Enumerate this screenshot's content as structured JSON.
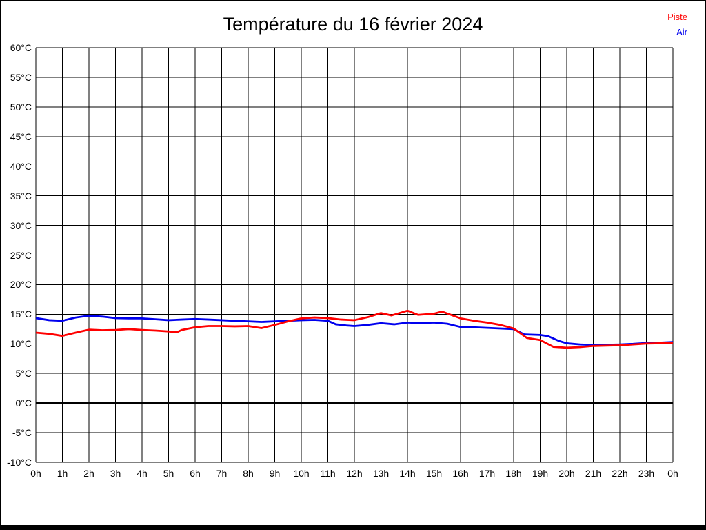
{
  "page": {
    "title": "Température du 16 février 2024"
  },
  "chart_data": {
    "type": "line",
    "title": "Température du 16 février 2024",
    "xlabel": "",
    "ylabel": "",
    "x_unit": "hour of day",
    "y_unit": "°C",
    "xlim": [
      0,
      24
    ],
    "ylim": [
      -10,
      60
    ],
    "grid": true,
    "grid_color": "#000000",
    "background": "#ffffff",
    "legend_position": "top-right",
    "zero_line": {
      "value": 0,
      "width": 4,
      "color": "#000000"
    },
    "xtick_values": [
      0,
      1,
      2,
      3,
      4,
      5,
      6,
      7,
      8,
      9,
      10,
      11,
      12,
      13,
      14,
      15,
      16,
      17,
      18,
      19,
      20,
      21,
      22,
      23,
      24
    ],
    "xtick_labels": [
      "0h",
      "1h",
      "2h",
      "3h",
      "4h",
      "5h",
      "6h",
      "7h",
      "8h",
      "9h",
      "10h",
      "11h",
      "12h",
      "13h",
      "14h",
      "15h",
      "16h",
      "17h",
      "18h",
      "19h",
      "20h",
      "21h",
      "22h",
      "23h",
      "0h"
    ],
    "ytick_values": [
      60,
      55,
      50,
      45,
      40,
      35,
      30,
      25,
      20,
      15,
      10,
      5,
      0,
      -5,
      -10
    ],
    "ytick_labels": [
      "60°C",
      "55°C",
      "50°C",
      "45°C",
      "40°C",
      "35°C",
      "30°C",
      "25°C",
      "20°C",
      "15°C",
      "10°C",
      "5°C",
      "0°C",
      "-5°C",
      "-10°C"
    ],
    "series": [
      {
        "name": "Piste",
        "color": "#ff0000",
        "x": [
          0,
          0.5,
          1,
          1.5,
          2,
          2.5,
          3,
          3.5,
          4,
          4.5,
          5,
          5.3,
          5.5,
          6,
          6.5,
          7,
          7.5,
          8,
          8.5,
          9,
          9.5,
          10,
          10.5,
          11,
          11.5,
          12,
          12.5,
          13,
          13.4,
          14,
          14.4,
          15,
          15.3,
          16,
          16.5,
          17,
          17.5,
          18,
          18.5,
          19,
          19.5,
          20,
          20.5,
          21,
          21.5,
          22,
          22.5,
          23,
          23.5,
          24
        ],
        "y": [
          11.9,
          11.7,
          11.35,
          11.9,
          12.4,
          12.3,
          12.35,
          12.5,
          12.35,
          12.25,
          12.1,
          11.95,
          12.35,
          12.8,
          13.0,
          13.0,
          12.95,
          13.0,
          12.65,
          13.2,
          13.8,
          14.3,
          14.45,
          14.35,
          14.1,
          14.0,
          14.5,
          15.2,
          14.8,
          15.6,
          14.9,
          15.1,
          15.45,
          14.3,
          13.9,
          13.6,
          13.2,
          12.6,
          11.0,
          10.65,
          9.5,
          9.35,
          9.45,
          9.65,
          9.7,
          9.75,
          9.9,
          10.05,
          10.1,
          10.1
        ]
      },
      {
        "name": "Air",
        "color": "#0000ee",
        "x": [
          0,
          0.5,
          1,
          1.5,
          2,
          2.5,
          3,
          3.5,
          4,
          4.5,
          5,
          5.5,
          6,
          6.5,
          7,
          7.5,
          8,
          8.5,
          9,
          9.5,
          10,
          10.5,
          11,
          11.3,
          11.7,
          12,
          12.5,
          13,
          13.5,
          14,
          14.5,
          15,
          15.5,
          16,
          16.5,
          17,
          17.5,
          18,
          18.4,
          19,
          19.3,
          19.7,
          20,
          20.5,
          21,
          21.5,
          22,
          22.5,
          23,
          23.5,
          24
        ],
        "y": [
          14.35,
          14.0,
          13.9,
          14.45,
          14.75,
          14.6,
          14.35,
          14.3,
          14.3,
          14.15,
          14.0,
          14.1,
          14.2,
          14.1,
          14.0,
          13.9,
          13.8,
          13.7,
          13.8,
          13.9,
          14.0,
          14.05,
          13.9,
          13.3,
          13.1,
          13.0,
          13.2,
          13.5,
          13.3,
          13.6,
          13.5,
          13.6,
          13.4,
          12.85,
          12.8,
          12.7,
          12.6,
          12.5,
          11.6,
          11.5,
          11.3,
          10.5,
          10.1,
          9.9,
          9.8,
          9.85,
          9.9,
          10.0,
          10.15,
          10.2,
          10.3
        ]
      }
    ]
  }
}
